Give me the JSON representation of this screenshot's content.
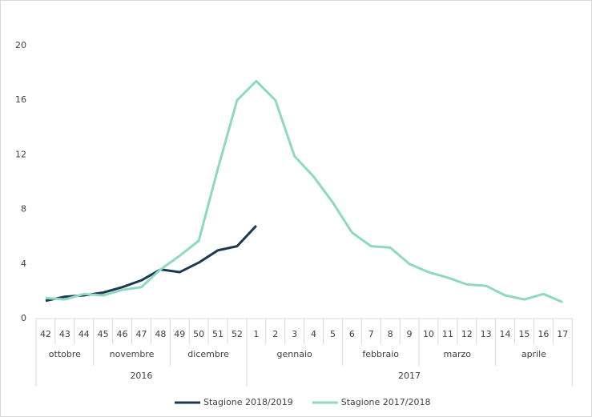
{
  "chart_data": {
    "type": "line",
    "categories": [
      "42",
      "43",
      "44",
      "45",
      "46",
      "47",
      "48",
      "49",
      "50",
      "51",
      "52",
      "1",
      "2",
      "3",
      "4",
      "5",
      "6",
      "7",
      "8",
      "9",
      "10",
      "11",
      "12",
      "13",
      "14",
      "15",
      "16",
      "17"
    ],
    "months": [
      "ottobre",
      "ottobre",
      "ottobre",
      "novembre",
      "novembre",
      "novembre",
      "novembre",
      "dicembre",
      "dicembre",
      "dicembre",
      "dicembre",
      "gennaio",
      "gennaio",
      "gennaio",
      "gennaio",
      "gennaio",
      "febbraio",
      "febbraio",
      "febbraio",
      "febbraio",
      "marzo",
      "marzo",
      "marzo",
      "marzo",
      "aprile",
      "aprile",
      "aprile",
      "aprile"
    ],
    "years": [
      "2016",
      "2016",
      "2016",
      "2016",
      "2016",
      "2016",
      "2016",
      "2016",
      "2016",
      "2016",
      "2016",
      "2017",
      "2017",
      "2017",
      "2017",
      "2017",
      "2017",
      "2017",
      "2017",
      "2017",
      "2017",
      "2017",
      "2017",
      "2017",
      "2017",
      "2017",
      "2017",
      "2017"
    ],
    "series": [
      {
        "name": "Stagione 2018/2019",
        "color": "#1b3a52",
        "values": [
          1.3,
          1.6,
          1.7,
          1.9,
          2.3,
          2.8,
          3.6,
          3.4,
          4.1,
          5.0,
          5.3,
          6.8,
          null,
          null,
          null,
          null,
          null,
          null,
          null,
          null,
          null,
          null,
          null,
          null,
          null,
          null,
          null,
          null
        ]
      },
      {
        "name": "Stagione 2017/2018",
        "color": "#8fd9bf",
        "values": [
          1.5,
          1.4,
          1.8,
          1.7,
          2.1,
          2.3,
          3.6,
          4.6,
          5.7,
          11,
          16,
          17.4,
          16,
          11.9,
          10.4,
          8.5,
          6.3,
          5.3,
          5.2,
          4.0,
          3.4,
          3.0,
          2.5,
          2.4,
          1.7,
          1.4,
          1.8,
          1.2
        ]
      }
    ],
    "ylim": [
      0,
      20
    ],
    "yticks": [
      0,
      4,
      8,
      12,
      16,
      20
    ],
    "grid": false,
    "legend": "bottom"
  }
}
